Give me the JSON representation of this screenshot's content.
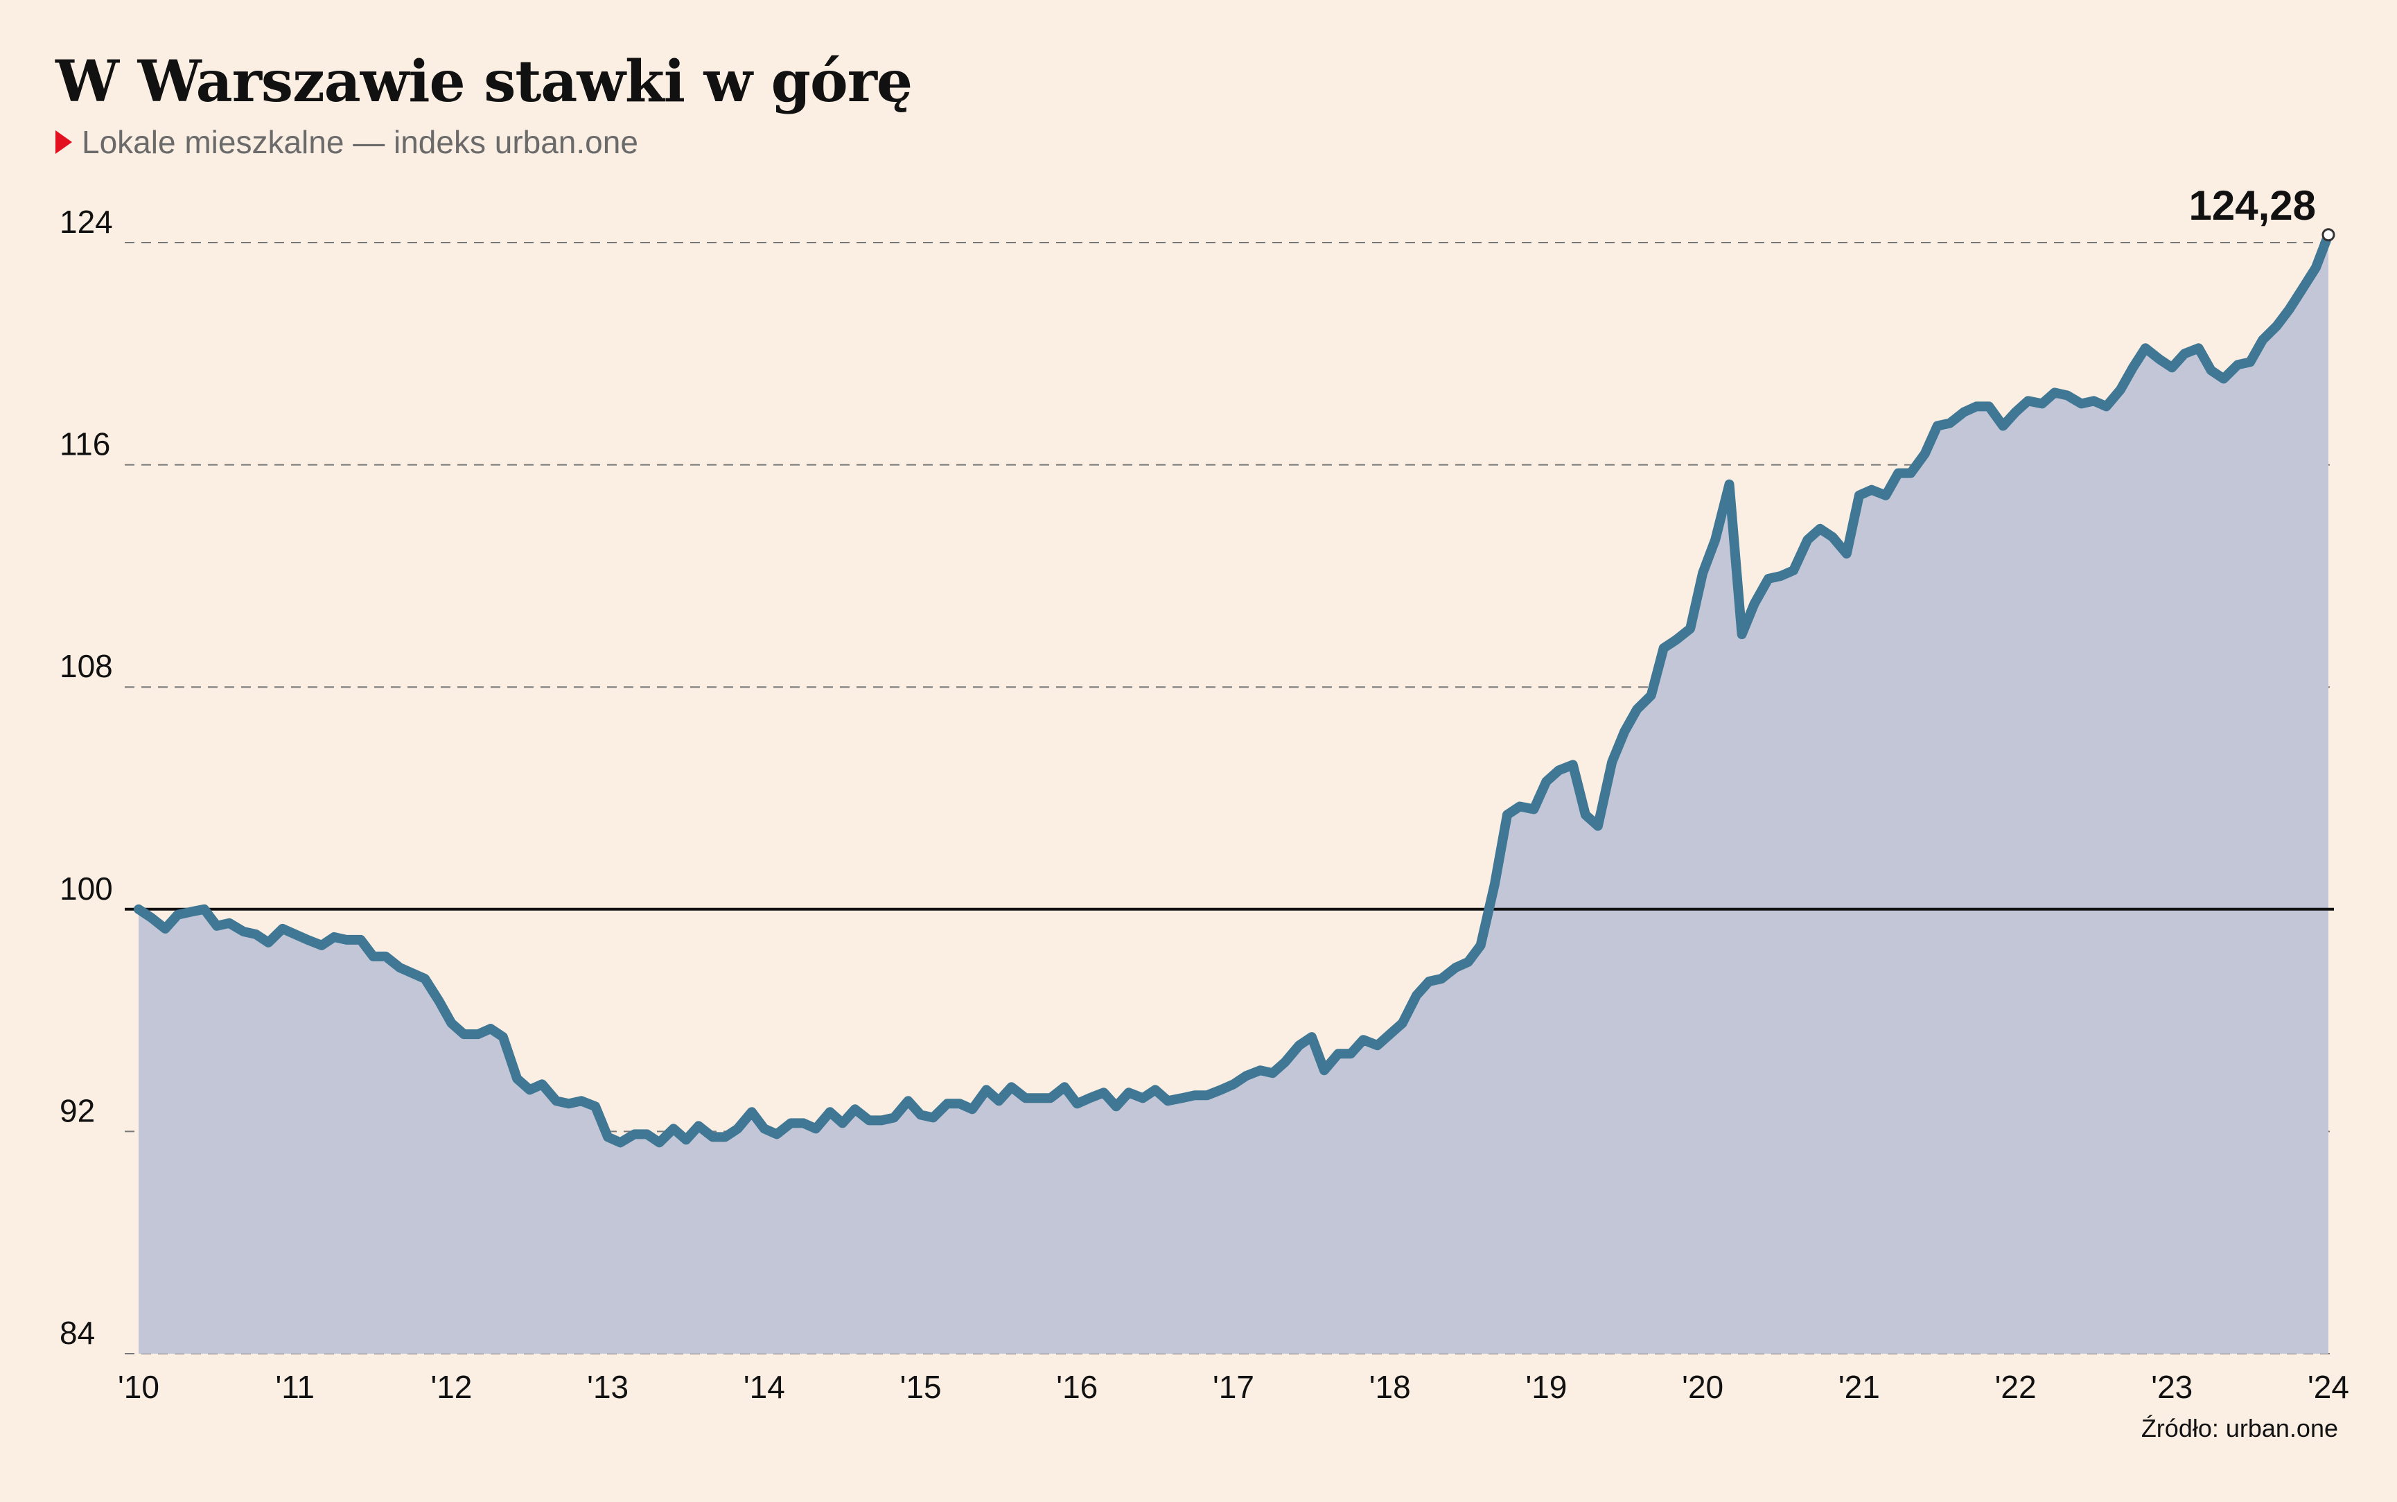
{
  "header": {
    "title": "W Warszawie stawki w górę",
    "subtitle": "Lokale mieszkalne — indeks urban.one"
  },
  "footer": {
    "source": "Źródło: urban.one"
  },
  "colors": {
    "background": "#fbeee2",
    "line": "#3f7794",
    "area": "#c2c6d6",
    "subtitle_marker": "#e3101f"
  },
  "chart_data": {
    "type": "area",
    "xlim": [
      2010,
      2024.1
    ],
    "ylim": [
      84,
      124.8
    ],
    "x_tick_values": [
      2010,
      2011,
      2012,
      2013,
      2014,
      2015,
      2016,
      2017,
      2018,
      2019,
      2020,
      2021,
      2022,
      2023,
      2024
    ],
    "x_tick_labels": [
      "'10",
      "'11",
      "'12",
      "'13",
      "'14",
      "'15",
      "'16",
      "'17",
      "'18",
      "'19",
      "'20",
      "'21",
      "'22",
      "'23",
      "'24"
    ],
    "y_ticks": [
      84,
      92,
      100,
      108,
      116,
      124
    ],
    "y_tick_labels": [
      "84",
      "92",
      "100",
      "108",
      "116",
      "124"
    ],
    "reference_line": 100,
    "grid": "horizontal dashed",
    "annotation": {
      "label": "124,28",
      "x": 2024.0,
      "y": 124.28
    },
    "series": [
      {
        "values": [
          [
            2010.0,
            100.0
          ],
          [
            2010.08,
            99.7
          ],
          [
            2010.17,
            99.3
          ],
          [
            2010.25,
            99.8
          ],
          [
            2010.33,
            99.9
          ],
          [
            2010.42,
            100.0
          ],
          [
            2010.5,
            99.4
          ],
          [
            2010.58,
            99.5
          ],
          [
            2010.67,
            99.2
          ],
          [
            2010.75,
            99.1
          ],
          [
            2010.83,
            98.8
          ],
          [
            2010.92,
            99.3
          ],
          [
            2011.0,
            99.1
          ],
          [
            2011.08,
            98.9
          ],
          [
            2011.17,
            98.7
          ],
          [
            2011.25,
            99.0
          ],
          [
            2011.33,
            98.9
          ],
          [
            2011.42,
            98.9
          ],
          [
            2011.5,
            98.3
          ],
          [
            2011.58,
            98.3
          ],
          [
            2011.67,
            97.9
          ],
          [
            2011.75,
            97.7
          ],
          [
            2011.83,
            97.5
          ],
          [
            2011.92,
            96.7
          ],
          [
            2012.0,
            95.9
          ],
          [
            2012.08,
            95.5
          ],
          [
            2012.17,
            95.5
          ],
          [
            2012.25,
            95.7
          ],
          [
            2012.33,
            95.4
          ],
          [
            2012.42,
            93.9
          ],
          [
            2012.5,
            93.5
          ],
          [
            2012.58,
            93.7
          ],
          [
            2012.67,
            93.1
          ],
          [
            2012.75,
            93.0
          ],
          [
            2012.83,
            93.1
          ],
          [
            2012.92,
            92.9
          ],
          [
            2013.0,
            91.8
          ],
          [
            2013.08,
            91.6
          ],
          [
            2013.17,
            91.9
          ],
          [
            2013.25,
            91.9
          ],
          [
            2013.33,
            91.6
          ],
          [
            2013.42,
            92.1
          ],
          [
            2013.5,
            91.7
          ],
          [
            2013.58,
            92.2
          ],
          [
            2013.67,
            91.8
          ],
          [
            2013.75,
            91.8
          ],
          [
            2013.83,
            92.1
          ],
          [
            2013.92,
            92.7
          ],
          [
            2014.0,
            92.1
          ],
          [
            2014.08,
            91.9
          ],
          [
            2014.17,
            92.3
          ],
          [
            2014.25,
            92.3
          ],
          [
            2014.33,
            92.1
          ],
          [
            2014.42,
            92.7
          ],
          [
            2014.5,
            92.3
          ],
          [
            2014.58,
            92.8
          ],
          [
            2014.67,
            92.4
          ],
          [
            2014.75,
            92.4
          ],
          [
            2014.83,
            92.5
          ],
          [
            2014.92,
            93.1
          ],
          [
            2015.0,
            92.6
          ],
          [
            2015.08,
            92.5
          ],
          [
            2015.17,
            93.0
          ],
          [
            2015.25,
            93.0
          ],
          [
            2015.33,
            92.8
          ],
          [
            2015.42,
            93.5
          ],
          [
            2015.5,
            93.1
          ],
          [
            2015.58,
            93.6
          ],
          [
            2015.67,
            93.2
          ],
          [
            2015.75,
            93.2
          ],
          [
            2015.83,
            93.2
          ],
          [
            2015.92,
            93.6
          ],
          [
            2016.0,
            93.0
          ],
          [
            2016.08,
            93.2
          ],
          [
            2016.17,
            93.4
          ],
          [
            2016.25,
            92.9
          ],
          [
            2016.33,
            93.4
          ],
          [
            2016.42,
            93.2
          ],
          [
            2016.5,
            93.5
          ],
          [
            2016.58,
            93.1
          ],
          [
            2016.67,
            93.2
          ],
          [
            2016.75,
            93.3
          ],
          [
            2016.83,
            93.3
          ],
          [
            2016.92,
            93.5
          ],
          [
            2017.0,
            93.7
          ],
          [
            2017.08,
            94.0
          ],
          [
            2017.17,
            94.2
          ],
          [
            2017.25,
            94.1
          ],
          [
            2017.33,
            94.5
          ],
          [
            2017.42,
            95.1
          ],
          [
            2017.5,
            95.4
          ],
          [
            2017.58,
            94.2
          ],
          [
            2017.67,
            94.8
          ],
          [
            2017.75,
            94.8
          ],
          [
            2017.83,
            95.3
          ],
          [
            2017.92,
            95.1
          ],
          [
            2018.0,
            95.5
          ],
          [
            2018.08,
            95.9
          ],
          [
            2018.17,
            96.9
          ],
          [
            2018.25,
            97.4
          ],
          [
            2018.33,
            97.5
          ],
          [
            2018.42,
            97.9
          ],
          [
            2018.5,
            98.1
          ],
          [
            2018.58,
            98.7
          ],
          [
            2018.67,
            100.9
          ],
          [
            2018.75,
            103.4
          ],
          [
            2018.83,
            103.7
          ],
          [
            2018.92,
            103.6
          ],
          [
            2019.0,
            104.6
          ],
          [
            2019.08,
            105.0
          ],
          [
            2019.17,
            105.2
          ],
          [
            2019.25,
            103.4
          ],
          [
            2019.33,
            103.0
          ],
          [
            2019.42,
            105.3
          ],
          [
            2019.5,
            106.4
          ],
          [
            2019.58,
            107.2
          ],
          [
            2019.67,
            107.7
          ],
          [
            2019.75,
            109.4
          ],
          [
            2019.83,
            109.7
          ],
          [
            2019.92,
            110.1
          ],
          [
            2020.0,
            112.1
          ],
          [
            2020.08,
            113.3
          ],
          [
            2020.17,
            115.3
          ],
          [
            2020.25,
            109.9
          ],
          [
            2020.33,
            111.0
          ],
          [
            2020.42,
            111.9
          ],
          [
            2020.5,
            112.0
          ],
          [
            2020.58,
            112.2
          ],
          [
            2020.67,
            113.3
          ],
          [
            2020.75,
            113.7
          ],
          [
            2020.83,
            113.4
          ],
          [
            2020.92,
            112.8
          ],
          [
            2021.0,
            114.9
          ],
          [
            2021.08,
            115.1
          ],
          [
            2021.17,
            114.9
          ],
          [
            2021.25,
            115.7
          ],
          [
            2021.33,
            115.7
          ],
          [
            2021.42,
            116.4
          ],
          [
            2021.5,
            117.4
          ],
          [
            2021.58,
            117.5
          ],
          [
            2021.67,
            117.9
          ],
          [
            2021.75,
            118.1
          ],
          [
            2021.83,
            118.1
          ],
          [
            2021.92,
            117.4
          ],
          [
            2022.0,
            117.9
          ],
          [
            2022.08,
            118.3
          ],
          [
            2022.17,
            118.2
          ],
          [
            2022.25,
            118.6
          ],
          [
            2022.33,
            118.5
          ],
          [
            2022.42,
            118.2
          ],
          [
            2022.5,
            118.3
          ],
          [
            2022.58,
            118.1
          ],
          [
            2022.67,
            118.7
          ],
          [
            2022.75,
            119.5
          ],
          [
            2022.83,
            120.2
          ],
          [
            2022.92,
            119.8
          ],
          [
            2023.0,
            119.5
          ],
          [
            2023.08,
            120.0
          ],
          [
            2023.17,
            120.2
          ],
          [
            2023.25,
            119.4
          ],
          [
            2023.33,
            119.1
          ],
          [
            2023.42,
            119.6
          ],
          [
            2023.5,
            119.7
          ],
          [
            2023.58,
            120.5
          ],
          [
            2023.67,
            121.0
          ],
          [
            2023.75,
            121.6
          ],
          [
            2023.83,
            122.3
          ],
          [
            2023.92,
            123.1
          ],
          [
            2024.0,
            124.28
          ]
        ]
      }
    ]
  }
}
